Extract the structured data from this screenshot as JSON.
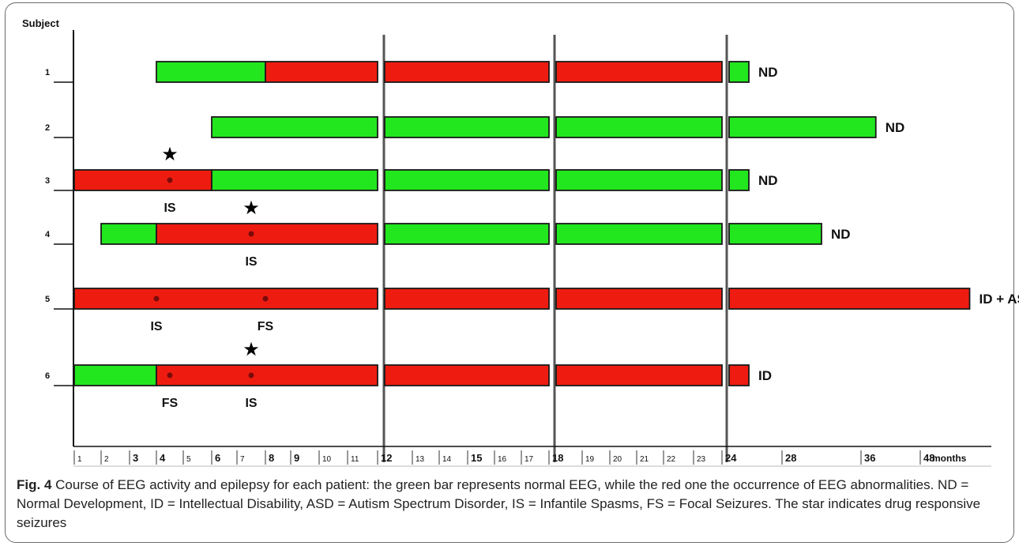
{
  "figure": {
    "label": "Fig. 4",
    "caption": "Course of EEG activity and epilepsy for each patient: the green bar represents normal EEG, while the red one the occurrence of EEG abnormalities. ND = Normal Development, ID = Intellectual Disability, ASD = Autism Spectrum Disorder, IS = Infantile Spasms, FS = Focal Seizures. The star indicates drug responsive seizures"
  },
  "chart_data": {
    "type": "timeline",
    "ylabel": "Subject",
    "xlabel": "months",
    "x_ticks": [
      "1",
      "2",
      "3",
      "4",
      "5",
      "6",
      "7",
      "8",
      "9",
      "10",
      "11",
      "12",
      "13",
      "14",
      "15",
      "16",
      "17",
      "18",
      "19",
      "20",
      "21",
      "22",
      "23",
      "24",
      "28",
      "36",
      "48"
    ],
    "bold_ticks": [
      "3",
      "4",
      "6",
      "8",
      "9",
      "12",
      "15",
      "18",
      "24",
      "28",
      "36",
      "48"
    ],
    "colors": {
      "normal_eeg": "#22e61e",
      "abnormal_eeg": "#ee1c10"
    },
    "subjects": [
      {
        "id": "1",
        "segments": [
          {
            "from": "4",
            "to": "8",
            "state": "normal_eeg"
          },
          {
            "from": "8",
            "to": "24",
            "state": "abnormal_eeg"
          },
          {
            "from": "24",
            "to": "25.5",
            "state": "normal_eeg"
          }
        ],
        "outcome": "ND",
        "events": [],
        "stars": []
      },
      {
        "id": "2",
        "segments": [
          {
            "from": "6",
            "to": "39",
            "state": "normal_eeg"
          }
        ],
        "outcome": "ND",
        "events": [],
        "stars": []
      },
      {
        "id": "3",
        "segments": [
          {
            "from": "1",
            "to": "6",
            "state": "abnormal_eeg"
          },
          {
            "from": "6",
            "to": "25.5",
            "state": "normal_eeg"
          }
        ],
        "outcome": "ND",
        "events": [
          {
            "at": "4.5",
            "label": "IS"
          }
        ],
        "stars": [
          "4.5"
        ]
      },
      {
        "id": "4",
        "segments": [
          {
            "from": "2",
            "to": "4",
            "state": "normal_eeg"
          },
          {
            "from": "4",
            "to": "12",
            "state": "abnormal_eeg"
          },
          {
            "from": "12",
            "to": "32",
            "state": "normal_eeg"
          }
        ],
        "outcome": "ND",
        "events": [
          {
            "at": "7.5",
            "label": "IS"
          }
        ],
        "stars": [
          "7.5"
        ]
      },
      {
        "id": "5",
        "segments": [
          {
            "from": "1",
            "to": "58",
            "state": "abnormal_eeg"
          }
        ],
        "outcome": "ID + ASD",
        "events": [
          {
            "at": "4",
            "label": "IS"
          },
          {
            "at": "8",
            "label": "FS"
          }
        ],
        "stars": []
      },
      {
        "id": "6",
        "segments": [
          {
            "from": "1",
            "to": "4",
            "state": "normal_eeg"
          },
          {
            "from": "4",
            "to": "25.5",
            "state": "abnormal_eeg"
          }
        ],
        "outcome": "ID",
        "events": [
          {
            "at": "4.5",
            "label": "FS"
          },
          {
            "at": "7.5",
            "label": "IS"
          }
        ],
        "stars": [
          "7.5"
        ]
      }
    ]
  }
}
